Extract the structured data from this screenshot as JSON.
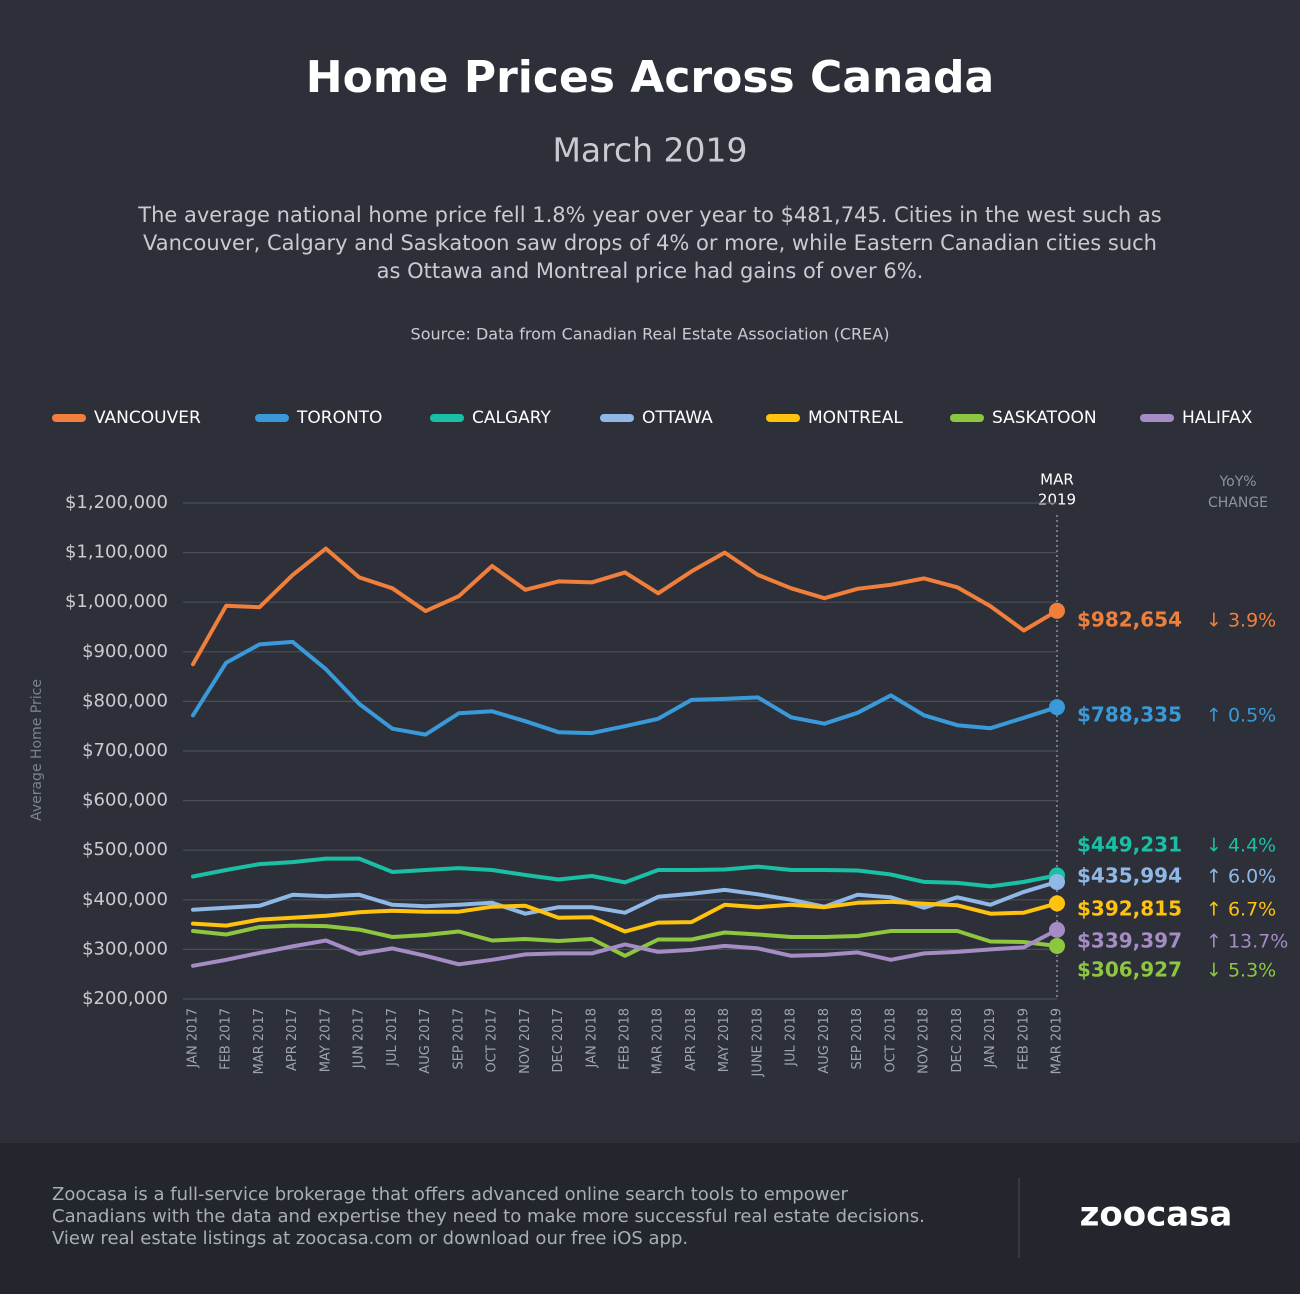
{
  "chart_data": {
    "type": "line",
    "title": "Home Prices Across Canada",
    "subtitle": "March 2019",
    "description": [
      "The average national home price fell 1.8% year over year to $481,745. Cities in the west such as",
      "Vancouver, Calgary and Saskatoon saw drops of 4% or more, while Eastern Canadian cities such",
      "as Ottawa and Montreal price had gains of over 6%."
    ],
    "source": "Source: Data from Canadian Real Estate Association (CREA)",
    "y_label": "Average Home Price",
    "marker_label": [
      "MAR",
      "2019"
    ],
    "yoy_header": [
      "YoY%",
      "CHANGE"
    ],
    "categories": [
      "JAN 2017",
      "FEB 2017",
      "MAR 2017",
      "APR 2017",
      "MAY 2017",
      "JUN 2017",
      "JUL 2017",
      "AUG 2017",
      "SEP 2017",
      "OCT 2017",
      "NOV 2017",
      "DEC 2017",
      "JAN 2018",
      "FEB 2018",
      "MAR 2018",
      "APR 2018",
      "MAY 2018",
      "JUNE 2018",
      "JUL 2018",
      "AUG 2018",
      "SEP 2018",
      "OCT 2018",
      "NOV 2018",
      "DEC 2018",
      "JAN 2019",
      "FEB 2019",
      "MAR 2019"
    ],
    "ylim": [
      200000,
      1200000
    ],
    "yticks": [
      {
        "value": 200000,
        "label": "$200,000"
      },
      {
        "value": 300000,
        "label": "$300,000"
      },
      {
        "value": 400000,
        "label": "$400,000"
      },
      {
        "value": 500000,
        "label": "$500,000"
      },
      {
        "value": 600000,
        "label": "$600,000"
      },
      {
        "value": 700000,
        "label": "$700,000"
      },
      {
        "value": 800000,
        "label": "$800,000"
      },
      {
        "value": 900000,
        "label": "$900,000"
      },
      {
        "value": 1000000,
        "label": "$1,000,000"
      },
      {
        "value": 1100000,
        "label": "$1,100,000"
      },
      {
        "value": 1200000,
        "label": "$1,200,000"
      }
    ],
    "grid": true,
    "legend": "top",
    "series": [
      {
        "name": "VANCOUVER",
        "color": "#f07f3c",
        "yoy": "↓ 3.9%",
        "values": [
          875000,
          993000,
          990000,
          1055000,
          1108000,
          1050000,
          1028000,
          982000,
          1012000,
          1073000,
          1025000,
          1042000,
          1040000,
          1060000,
          1018000,
          1062000,
          1100000,
          1055000,
          1028000,
          1008000,
          1027000,
          1035000,
          1048000,
          1030000,
          992000,
          943000,
          982654
        ],
        "value_labels": [
          null,
          null,
          null,
          null,
          null,
          null,
          null,
          null,
          null,
          null,
          null,
          null,
          null,
          null,
          null,
          null,
          null,
          null,
          null,
          null,
          null,
          null,
          null,
          null,
          null,
          null,
          "$982,654"
        ]
      },
      {
        "name": "TORONTO",
        "color": "#3a9ad9",
        "yoy": "↑ 0.5%",
        "values": [
          772000,
          878000,
          915000,
          920000,
          865000,
          795000,
          745000,
          733000,
          776000,
          780000,
          760000,
          738000,
          736000,
          750000,
          765000,
          803000,
          805000,
          808000,
          768000,
          755000,
          777000,
          812000,
          772000,
          752000,
          746000,
          767000,
          788335
        ],
        "value_labels": [
          null,
          null,
          null,
          null,
          null,
          null,
          null,
          null,
          null,
          null,
          null,
          null,
          null,
          null,
          null,
          null,
          null,
          null,
          null,
          null,
          null,
          null,
          null,
          null,
          null,
          null,
          "$788,335"
        ]
      },
      {
        "name": "CALGARY",
        "color": "#19c0a5",
        "yoy": "↓ 4.4%",
        "values": [
          447000,
          460000,
          472000,
          476000,
          483000,
          483000,
          456000,
          460000,
          464000,
          460000,
          450000,
          441000,
          448000,
          435000,
          460000,
          460000,
          461000,
          467000,
          460000,
          460000,
          459000,
          451000,
          436000,
          434000,
          427000,
          436000,
          449231
        ],
        "value_labels": [
          null,
          null,
          null,
          null,
          null,
          null,
          null,
          null,
          null,
          null,
          null,
          null,
          null,
          null,
          null,
          null,
          null,
          null,
          null,
          null,
          null,
          null,
          null,
          null,
          null,
          null,
          "$449,231"
        ]
      },
      {
        "name": "OTTAWA",
        "color": "#8fb8e6",
        "yoy": "↑ 6.0%",
        "values": [
          380000,
          384000,
          388000,
          410000,
          407000,
          410000,
          390000,
          387000,
          390000,
          394000,
          372000,
          385000,
          385000,
          374000,
          406000,
          412000,
          420000,
          411000,
          400000,
          386000,
          410000,
          405000,
          384000,
          405000,
          390000,
          416000,
          435994
        ],
        "value_labels": [
          null,
          null,
          null,
          null,
          null,
          null,
          null,
          null,
          null,
          null,
          null,
          null,
          null,
          null,
          null,
          null,
          null,
          null,
          null,
          null,
          null,
          null,
          null,
          null,
          null,
          null,
          "$435,994"
        ]
      },
      {
        "name": "MONTREAL",
        "color": "#ffc20e",
        "yoy": "↑ 6.7%",
        "values": [
          352000,
          348000,
          360000,
          364000,
          368000,
          375000,
          378000,
          376000,
          376000,
          386000,
          388000,
          364000,
          365000,
          336000,
          354000,
          355000,
          390000,
          385000,
          390000,
          385000,
          394000,
          396000,
          392000,
          389000,
          372000,
          374000,
          392815
        ],
        "value_labels": [
          null,
          null,
          null,
          null,
          null,
          null,
          null,
          null,
          null,
          null,
          null,
          null,
          null,
          null,
          null,
          null,
          null,
          null,
          null,
          null,
          null,
          null,
          null,
          null,
          null,
          null,
          "$392,815"
        ]
      },
      {
        "name": "SASKATOON",
        "color": "#8dc63f",
        "yoy": "↓ 5.3%",
        "values": [
          337000,
          330000,
          345000,
          348000,
          347000,
          340000,
          325000,
          329000,
          336000,
          318000,
          321000,
          317000,
          321000,
          287000,
          320000,
          320000,
          334000,
          330000,
          325000,
          325000,
          327000,
          337000,
          337000,
          337000,
          316000,
          315000,
          306927
        ],
        "value_labels": [
          null,
          null,
          null,
          null,
          null,
          null,
          null,
          null,
          null,
          null,
          null,
          null,
          null,
          null,
          null,
          null,
          null,
          null,
          null,
          null,
          null,
          null,
          null,
          null,
          null,
          null,
          "$306,927"
        ]
      },
      {
        "name": "HALIFAX",
        "color": "#a58cc4",
        "yoy": "↑ 13.7%",
        "values": [
          267000,
          279000,
          293000,
          306000,
          318000,
          291000,
          302000,
          287000,
          270000,
          279000,
          290000,
          292000,
          292000,
          310000,
          295000,
          299000,
          307000,
          302000,
          287000,
          289000,
          294000,
          279000,
          292000,
          295000,
          300000,
          304000,
          339397
        ],
        "value_labels": [
          null,
          null,
          null,
          null,
          null,
          null,
          null,
          null,
          null,
          null,
          null,
          null,
          null,
          null,
          null,
          null,
          null,
          null,
          null,
          null,
          null,
          null,
          null,
          null,
          null,
          null,
          "$339,397"
        ]
      }
    ]
  },
  "footer": {
    "text": [
      "Zoocasa is a full-service brokerage that offers advanced online search tools to empower",
      "Canadians with the data and expertise they need to make more successful real estate decisions.",
      "View real estate listings at zoocasa.com or download our free iOS app."
    ],
    "logo": "zoocasa"
  }
}
